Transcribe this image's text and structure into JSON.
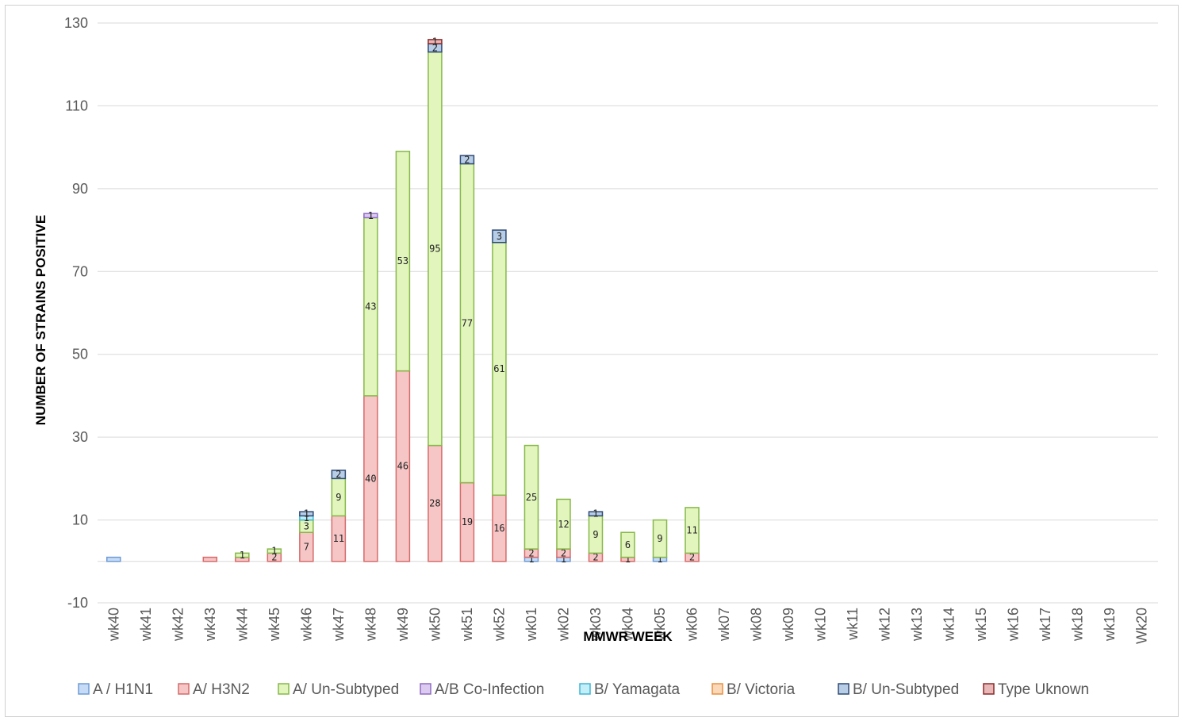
{
  "chart_data": {
    "type": "bar",
    "stacked": true,
    "title": "",
    "xlabel": "MMWR WEEK",
    "ylabel": "NUMBER OF STRAINS POSITIVE",
    "ylim": [
      -10,
      130
    ],
    "yticks": [
      -10,
      10,
      30,
      50,
      70,
      90,
      110,
      130
    ],
    "grid": true,
    "legend_position": "bottom",
    "categories": [
      "wk40",
      "wk41",
      "wk42",
      "wk43",
      "wk44",
      "wk45",
      "wk46",
      "wk47",
      "wk48",
      "wk49",
      "wk50",
      "wk51",
      "wk52",
      "wk01",
      "wk02",
      "wk03",
      "wk04",
      "wk05",
      "wk06",
      "wk07",
      "wk08",
      "wk09",
      "wk10",
      "wk11",
      "wk12",
      "wk13",
      "wk14",
      "wk15",
      "wk16",
      "wk17",
      "wk18",
      "wk19",
      "Wk20"
    ],
    "series": [
      {
        "name": "A / H1N1",
        "fill": "#c6dbf5",
        "stroke": "#6f9bd6",
        "values": [
          1,
          0,
          0,
          0,
          0,
          0,
          0,
          0,
          0,
          0,
          0,
          0,
          0,
          1,
          1,
          0,
          0,
          1,
          0,
          0,
          0,
          0,
          0,
          0,
          0,
          0,
          0,
          0,
          0,
          0,
          0,
          0,
          0
        ],
        "labels": [
          "",
          "",
          "",
          "",
          "",
          "",
          "",
          "",
          "",
          "",
          "",
          "",
          "",
          "1",
          "1",
          "",
          "",
          "1",
          "",
          "",
          "",
          "",
          "",
          "",
          "",
          "",
          "",
          "",
          "",
          "",
          "",
          "",
          ""
        ]
      },
      {
        "name": "A/ H3N2",
        "fill": "#f6c6c6",
        "stroke": "#d66a6a",
        "values": [
          0,
          0,
          0,
          1,
          1,
          2,
          7,
          11,
          40,
          46,
          28,
          19,
          16,
          2,
          2,
          2,
          1,
          0,
          2,
          0,
          0,
          0,
          0,
          0,
          0,
          0,
          0,
          0,
          0,
          0,
          0,
          0,
          0
        ],
        "labels": [
          "",
          "",
          "",
          "",
          "",
          "2",
          "7",
          "11",
          "40",
          "46",
          "28",
          "19",
          "16",
          "2",
          "2",
          "2",
          "1",
          "",
          "2",
          "",
          "",
          "",
          "",
          "",
          "",
          "",
          "",
          "",
          "",
          "",
          "",
          "",
          ""
        ]
      },
      {
        "name": "A/ Un-Subtyped",
        "fill": "#e2f5bd",
        "stroke": "#86b84a",
        "values": [
          0,
          0,
          0,
          0,
          1,
          1,
          3,
          9,
          43,
          53,
          95,
          77,
          61,
          25,
          12,
          9,
          6,
          9,
          11,
          0,
          0,
          0,
          0,
          0,
          0,
          0,
          0,
          0,
          0,
          0,
          0,
          0,
          0
        ],
        "labels": [
          "",
          "",
          "",
          "",
          "1",
          "1",
          "3",
          "9",
          "43",
          "53",
          "95",
          "77",
          "61",
          "25",
          "12",
          "9",
          "6",
          "9",
          "11",
          "",
          "",
          "",
          "",
          "",
          "",
          "",
          "",
          "",
          "",
          "",
          "",
          "",
          ""
        ]
      },
      {
        "name": "A/B Co-Infection",
        "fill": "#dccaf0",
        "stroke": "#8f6cc2",
        "values": [
          0,
          0,
          0,
          0,
          0,
          0,
          0,
          0,
          1,
          0,
          0,
          0,
          0,
          0,
          0,
          0,
          0,
          0,
          0,
          0,
          0,
          0,
          0,
          0,
          0,
          0,
          0,
          0,
          0,
          0,
          0,
          0,
          0
        ],
        "labels": [
          "",
          "",
          "",
          "",
          "",
          "",
          "",
          "",
          "1",
          "",
          "",
          "",
          "",
          "",
          "",
          "",
          "",
          "",
          "",
          "",
          "",
          "",
          "",
          "",
          "",
          "",
          "",
          "",
          "",
          "",
          "",
          "",
          ""
        ]
      },
      {
        "name": "B/ Yamagata",
        "fill": "#c4eef8",
        "stroke": "#3fb6d4",
        "values": [
          0,
          0,
          0,
          0,
          0,
          0,
          1,
          0,
          0,
          0,
          0,
          0,
          0,
          0,
          0,
          0,
          0,
          0,
          0,
          0,
          0,
          0,
          0,
          0,
          0,
          0,
          0,
          0,
          0,
          0,
          0,
          0,
          0
        ],
        "labels": [
          "",
          "",
          "",
          "",
          "",
          "",
          "1",
          "",
          "",
          "",
          "",
          "",
          "",
          "",
          "",
          "",
          "",
          "",
          "",
          "",
          "",
          "",
          "",
          "",
          "",
          "",
          "",
          "",
          "",
          "",
          "",
          "",
          ""
        ]
      },
      {
        "name": "B/ Victoria",
        "fill": "#fbd8b8",
        "stroke": "#e8903e",
        "values": [
          0,
          0,
          0,
          0,
          0,
          0,
          0,
          0,
          0,
          0,
          0,
          0,
          0,
          0,
          0,
          0,
          0,
          0,
          0,
          0,
          0,
          0,
          0,
          0,
          0,
          0,
          0,
          0,
          0,
          0,
          0,
          0,
          0
        ],
        "labels": [
          "",
          "",
          "",
          "",
          "",
          "",
          "",
          "",
          "",
          "",
          "",
          "",
          "",
          "",
          "",
          "",
          "",
          "",
          "",
          "",
          "",
          "",
          "",
          "",
          "",
          "",
          "",
          "",
          "",
          "",
          "",
          "",
          ""
        ]
      },
      {
        "name": "B/ Un-Subtyped",
        "fill": "#b8cde6",
        "stroke": "#2e4a75",
        "values": [
          0,
          0,
          0,
          0,
          0,
          0,
          1,
          2,
          0,
          0,
          2,
          2,
          3,
          0,
          0,
          1,
          0,
          0,
          0,
          0,
          0,
          0,
          0,
          0,
          0,
          0,
          0,
          0,
          0,
          0,
          0,
          0,
          0
        ],
        "labels": [
          "",
          "",
          "",
          "",
          "",
          "",
          "1",
          "2",
          "",
          "",
          "2",
          "2",
          "3",
          "",
          "",
          "1",
          "",
          "",
          "",
          "",
          "",
          "",
          "",
          "",
          "",
          "",
          "",
          "",
          "",
          "",
          "",
          "",
          ""
        ]
      },
      {
        "name": "Type Uknown",
        "fill": "#e8b8b8",
        "stroke": "#8b2a2a",
        "values": [
          0,
          0,
          0,
          0,
          0,
          0,
          0,
          0,
          0,
          0,
          1,
          0,
          0,
          0,
          0,
          0,
          0,
          0,
          0,
          0,
          0,
          0,
          0,
          0,
          0,
          0,
          0,
          0,
          0,
          0,
          0,
          0,
          0
        ],
        "labels": [
          "",
          "",
          "",
          "",
          "",
          "",
          "",
          "",
          "",
          "",
          "1",
          "",
          "",
          "",
          "",
          "",
          "",
          "",
          "",
          "",
          "",
          "",
          "",
          "",
          "",
          "",
          "",
          "",
          "",
          "",
          "",
          "",
          ""
        ]
      }
    ]
  }
}
